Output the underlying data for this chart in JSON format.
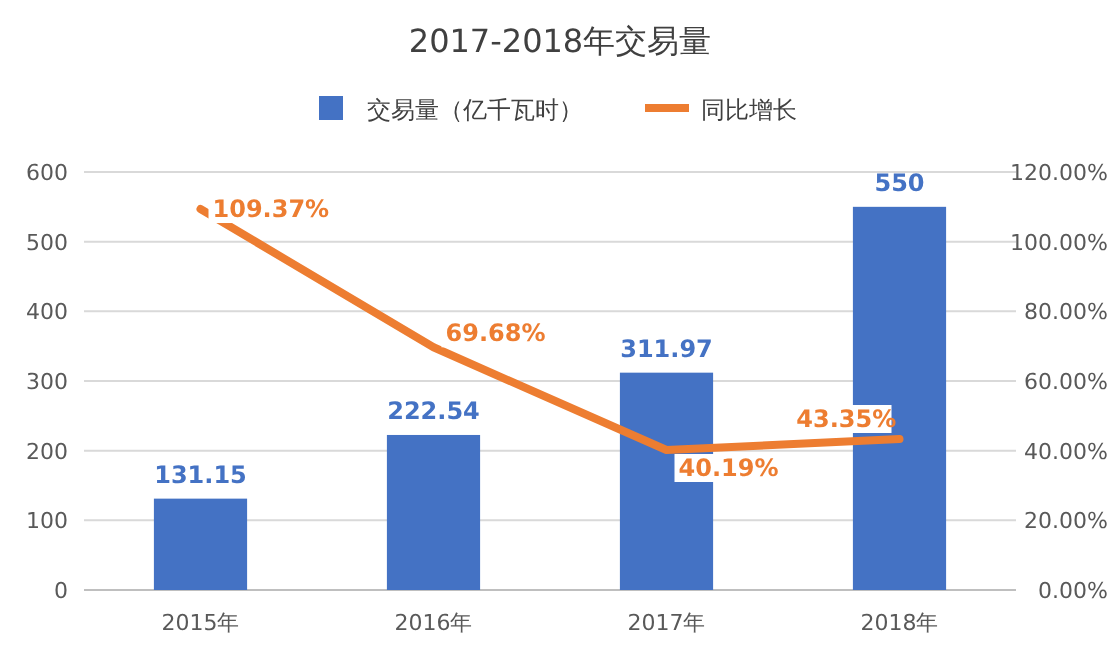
{
  "chart_data": {
    "type": "bar",
    "title": "2017-2018年交易量",
    "categories": [
      "2015年",
      "2016年",
      "2017年",
      "2018年"
    ],
    "series": [
      {
        "name": "交易量（亿千瓦时）",
        "color": "#4472c4",
        "values": [
          131.15,
          222.54,
          311.97,
          550
        ],
        "value_labels": [
          "131.15",
          "222.54",
          "311.97",
          "550"
        ]
      },
      {
        "name": "同比增长",
        "type": "line",
        "axis": "y2",
        "color": "#ed7d31",
        "values": [
          109.37,
          69.68,
          40.19,
          43.35
        ],
        "value_labels": [
          "109.37%",
          "69.68%",
          "40.19%",
          "43.35%"
        ],
        "marker": "none",
        "line_style": "solid"
      }
    ],
    "ylim": [
      0,
      600
    ],
    "yticks": [
      0,
      100,
      200,
      300,
      400,
      500,
      600
    ],
    "y2lim": [
      0,
      120
    ],
    "y2ticks": [
      {
        "value": 0,
        "label": "0.00%"
      },
      {
        "value": 20,
        "label": "20.00%"
      },
      {
        "value": 40,
        "label": "40.00%"
      },
      {
        "value": 60,
        "label": "60.00%"
      },
      {
        "value": 80,
        "label": "80.00%"
      },
      {
        "value": 100,
        "label": "100.00%"
      },
      {
        "value": 120,
        "label": "120.00%"
      }
    ],
    "grid": "y",
    "legend": "top"
  }
}
